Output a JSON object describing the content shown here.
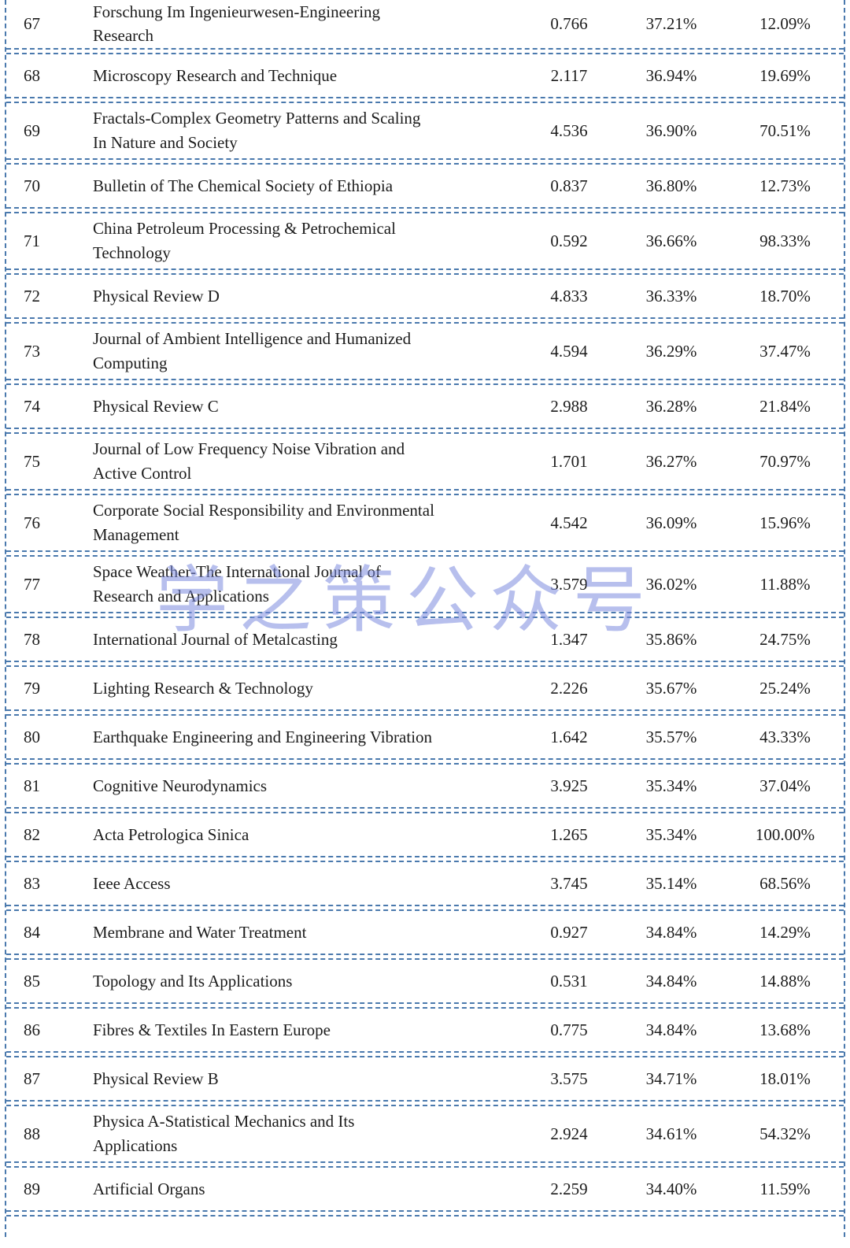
{
  "watermark": "学之策公众号",
  "colors": {
    "border": "#4a79ad",
    "watermark": "#7c8ade",
    "text": "#1c1c1c"
  },
  "table": {
    "columns": [
      "rank",
      "journal_name",
      "impact_factor",
      "percent_1",
      "percent_2"
    ],
    "rows": [
      {
        "rank": "67",
        "name": "Forschung Im Ingenieurwesen-Engineering\nResearch",
        "impact_factor": "0.766",
        "percent_1": "37.21%",
        "percent_2": "12.09%"
      },
      {
        "rank": "68",
        "name": "Microscopy Research and Technique",
        "impact_factor": "2.117",
        "percent_1": "36.94%",
        "percent_2": "19.69%"
      },
      {
        "rank": "69",
        "name": "Fractals-Complex Geometry Patterns and Scaling\nIn Nature and Society",
        "impact_factor": "4.536",
        "percent_1": "36.90%",
        "percent_2": "70.51%"
      },
      {
        "rank": "70",
        "name": "Bulletin of The Chemical Society of Ethiopia",
        "impact_factor": "0.837",
        "percent_1": "36.80%",
        "percent_2": "12.73%"
      },
      {
        "rank": "71",
        "name": "China Petroleum Processing & Petrochemical\nTechnology",
        "impact_factor": "0.592",
        "percent_1": "36.66%",
        "percent_2": "98.33%"
      },
      {
        "rank": "72",
        "name": "Physical Review D",
        "impact_factor": "4.833",
        "percent_1": "36.33%",
        "percent_2": "18.70%"
      },
      {
        "rank": "73",
        "name": "Journal of Ambient Intelligence and Humanized\nComputing",
        "impact_factor": "4.594",
        "percent_1": "36.29%",
        "percent_2": "37.47%"
      },
      {
        "rank": "74",
        "name": "Physical Review C",
        "impact_factor": "2.988",
        "percent_1": "36.28%",
        "percent_2": "21.84%"
      },
      {
        "rank": "75",
        "name": "Journal of Low Frequency Noise Vibration and\nActive Control",
        "impact_factor": "1.701",
        "percent_1": "36.27%",
        "percent_2": "70.97%"
      },
      {
        "rank": "76",
        "name": "Corporate Social Responsibility and Environmental\nManagement",
        "impact_factor": "4.542",
        "percent_1": "36.09%",
        "percent_2": "15.96%"
      },
      {
        "rank": "77",
        "name": "Space Weather-The International Journal of\nResearch and Applications",
        "impact_factor": "3.579",
        "percent_1": "36.02%",
        "percent_2": "11.88%"
      },
      {
        "rank": "78",
        "name": "International Journal of Metalcasting",
        "impact_factor": "1.347",
        "percent_1": "35.86%",
        "percent_2": "24.75%"
      },
      {
        "rank": "79",
        "name": "Lighting Research & Technology",
        "impact_factor": "2.226",
        "percent_1": "35.67%",
        "percent_2": "25.24%"
      },
      {
        "rank": "80",
        "name": "Earthquake Engineering and Engineering Vibration",
        "impact_factor": "1.642",
        "percent_1": "35.57%",
        "percent_2": "43.33%"
      },
      {
        "rank": "81",
        "name": "Cognitive Neurodynamics",
        "impact_factor": "3.925",
        "percent_1": "35.34%",
        "percent_2": "37.04%"
      },
      {
        "rank": "82",
        "name": "Acta Petrologica Sinica",
        "impact_factor": "1.265",
        "percent_1": "35.34%",
        "percent_2": "100.00%"
      },
      {
        "rank": "83",
        "name": "Ieee Access",
        "impact_factor": "3.745",
        "percent_1": "35.14%",
        "percent_2": "68.56%"
      },
      {
        "rank": "84",
        "name": "Membrane and Water Treatment",
        "impact_factor": "0.927",
        "percent_1": "34.84%",
        "percent_2": "14.29%"
      },
      {
        "rank": "85",
        "name": "Topology and Its Applications",
        "impact_factor": "0.531",
        "percent_1": "34.84%",
        "percent_2": "14.88%"
      },
      {
        "rank": "86",
        "name": "Fibres & Textiles In Eastern Europe",
        "impact_factor": "0.775",
        "percent_1": "34.84%",
        "percent_2": "13.68%"
      },
      {
        "rank": "87",
        "name": "Physical Review B",
        "impact_factor": "3.575",
        "percent_1": "34.71%",
        "percent_2": "18.01%"
      },
      {
        "rank": "88",
        "name": "Physica A-Statistical Mechanics and Its\nApplications",
        "impact_factor": "2.924",
        "percent_1": "34.61%",
        "percent_2": "54.32%"
      },
      {
        "rank": "89",
        "name": "Artificial Organs",
        "impact_factor": "2.259",
        "percent_1": "34.40%",
        "percent_2": "11.59%"
      }
    ]
  }
}
